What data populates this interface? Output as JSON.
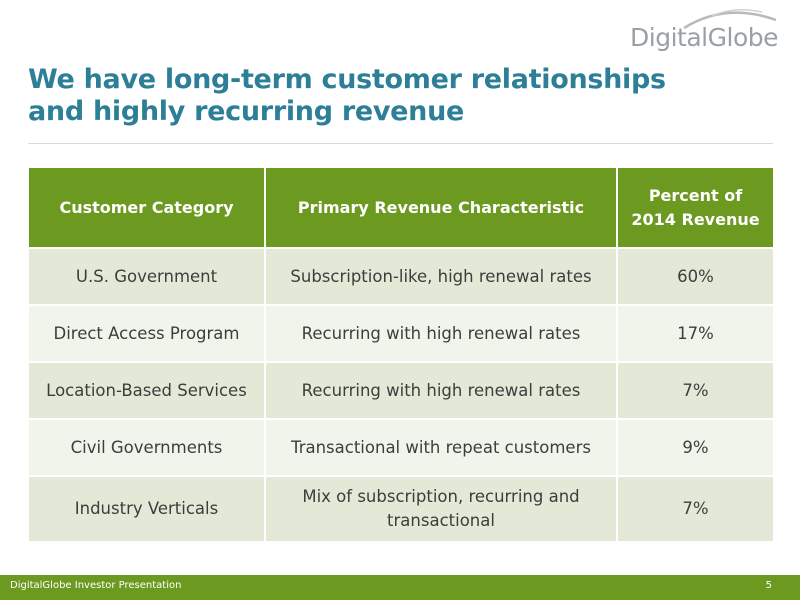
{
  "header": {
    "logo_text": "DigitalGlobe",
    "title": "We have long-term customer relationships and highly recurring revenue"
  },
  "table": {
    "headers": [
      "Customer Category",
      "Primary Revenue Characteristic",
      "Percent of 2014 Revenue"
    ],
    "rows": [
      [
        "U.S. Government",
        "Subscription-like, high renewal rates",
        "60%"
      ],
      [
        "Direct Access Program",
        "Recurring with high renewal rates",
        "17%"
      ],
      [
        "Location-Based Services",
        "Recurring with high renewal rates",
        "7%"
      ],
      [
        "Civil Governments",
        "Transactional with repeat customers",
        "9%"
      ],
      [
        "Industry Verticals",
        "Mix of subscription, recurring and transactional",
        "7%"
      ]
    ]
  },
  "footer": {
    "left": "DigitalGlobe Investor Presentation",
    "page": "5"
  },
  "colors": {
    "accent_green": "#6c9a20",
    "title_teal": "#2d7f97",
    "row_dark": "#e3e9d6",
    "row_light": "#f1f4eb"
  }
}
